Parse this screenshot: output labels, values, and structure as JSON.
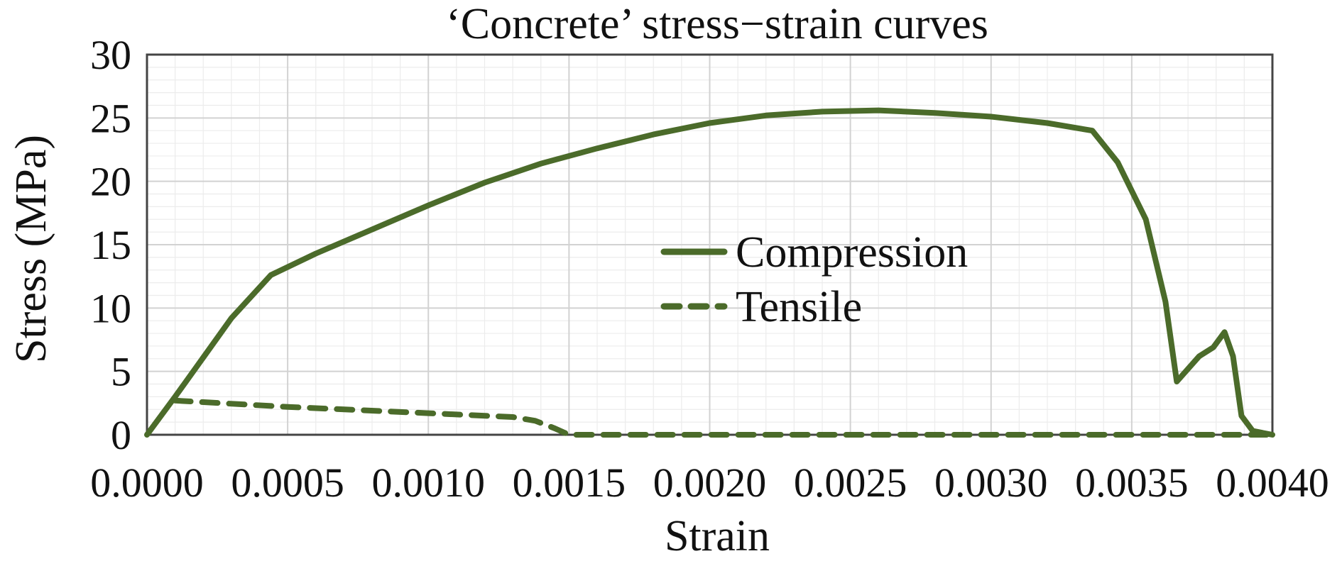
{
  "chart_data": {
    "type": "line",
    "title": "‘Concrete’ stress−strain curves",
    "xlabel": "Strain",
    "ylabel": "Stress (MPa)",
    "xlim": [
      0,
      0.004
    ],
    "ylim": [
      0,
      30
    ],
    "x_ticks": [
      "0.0000",
      "0.0005",
      "0.0010",
      "0.0015",
      "0.0020",
      "0.0025",
      "0.0030",
      "0.0035",
      "0.0040"
    ],
    "y_ticks": [
      "0",
      "5",
      "10",
      "15",
      "20",
      "25",
      "30"
    ],
    "grid": true,
    "legend_position": "center",
    "line_color": "#4b6b2a",
    "series": [
      {
        "name": "Compression",
        "style": "solid",
        "points": [
          [
            0.0,
            0.0
          ],
          [
            0.0001,
            3.0
          ],
          [
            0.0002,
            6.1
          ],
          [
            0.0003,
            9.2
          ],
          [
            0.00044,
            12.6
          ],
          [
            0.0006,
            14.3
          ],
          [
            0.0008,
            16.2
          ],
          [
            0.001,
            18.1
          ],
          [
            0.0012,
            19.9
          ],
          [
            0.0014,
            21.4
          ],
          [
            0.0016,
            22.6
          ],
          [
            0.0018,
            23.7
          ],
          [
            0.002,
            24.6
          ],
          [
            0.0022,
            25.2
          ],
          [
            0.0024,
            25.5
          ],
          [
            0.0026,
            25.6
          ],
          [
            0.0028,
            25.4
          ],
          [
            0.003,
            25.1
          ],
          [
            0.0032,
            24.6
          ],
          [
            0.00336,
            24.0
          ],
          [
            0.00345,
            21.5
          ],
          [
            0.00355,
            17.0
          ],
          [
            0.00362,
            10.5
          ],
          [
            0.00366,
            4.2
          ],
          [
            0.0037,
            5.2
          ],
          [
            0.00374,
            6.2
          ],
          [
            0.00379,
            6.9
          ],
          [
            0.00383,
            8.1
          ],
          [
            0.00386,
            6.2
          ],
          [
            0.00389,
            1.5
          ],
          [
            0.00393,
            0.3
          ],
          [
            0.004,
            0.0
          ]
        ]
      },
      {
        "name": "Tensile",
        "style": "dashed",
        "points": [
          [
            0.0001,
            2.7
          ],
          [
            0.0005,
            2.2
          ],
          [
            0.001,
            1.7
          ],
          [
            0.0013,
            1.4
          ],
          [
            0.00138,
            1.1
          ],
          [
            0.00145,
            0.5
          ],
          [
            0.0015,
            0.0
          ],
          [
            0.002,
            0.0
          ],
          [
            0.0025,
            0.0
          ],
          [
            0.003,
            0.0
          ],
          [
            0.0035,
            0.0
          ],
          [
            0.004,
            0.0
          ]
        ]
      }
    ]
  }
}
